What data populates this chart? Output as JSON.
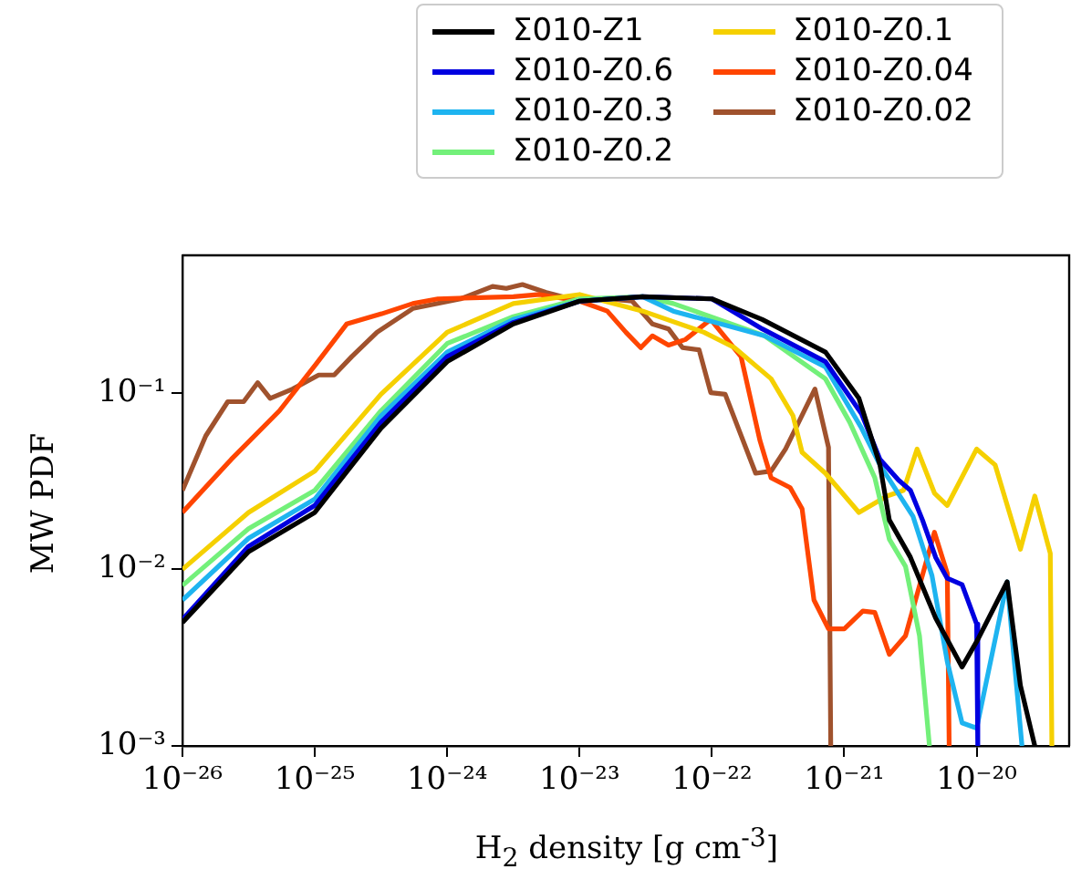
{
  "chart_data": {
    "type": "line",
    "xlabel": "H$_{2}$ density [g cm$^{-3}$]",
    "ylabel": "MW PDF",
    "log": "xy",
    "grid": false,
    "legend": "top",
    "marker": "none",
    "line_style": "solid",
    "xlim": [
      1e-26,
      5e-20
    ],
    "ylim": [
      0.001,
      0.6
    ],
    "xticks": [
      {
        "value": 1e-26,
        "label": "10⁻²⁶"
      },
      {
        "value": 1e-25,
        "label": "10⁻²⁵"
      },
      {
        "value": 1e-24,
        "label": "10⁻²⁴"
      },
      {
        "value": 1e-23,
        "label": "10⁻²³"
      },
      {
        "value": 1e-22,
        "label": "10⁻²²"
      },
      {
        "value": 1e-21,
        "label": "10⁻²¹"
      },
      {
        "value": 1e-20,
        "label": "10⁻²⁰"
      }
    ],
    "yticks": [
      {
        "value": 0.001,
        "label": "10⁻³"
      },
      {
        "value": 0.01,
        "label": "10⁻²"
      },
      {
        "value": 0.1,
        "label": "10⁻¹"
      }
    ],
    "series": [
      {
        "name": "Σ010-Z1",
        "color": "#000000",
        "x": [
          1e-26,
          3.16e-26,
          1e-25,
          3.16e-25,
          1e-24,
          3.16e-24,
          1e-23,
          3e-23,
          1e-22,
          2.4e-22,
          7.2e-22,
          1.29e-21,
          1.86e-21,
          2.19e-21,
          3.16e-21,
          4.9e-21,
          7.76e-21,
          1.02e-20,
          1.7e-20,
          2.14e-20,
          2.75e-20
        ],
        "values": [
          0.005,
          0.0126,
          0.021,
          0.063,
          0.15,
          0.245,
          0.33,
          0.35,
          0.34,
          0.26,
          0.17,
          0.093,
          0.039,
          0.019,
          0.0117,
          0.0053,
          0.0028,
          0.004,
          0.0085,
          0.0022,
          0.001
        ]
      },
      {
        "name": "Σ010-Z0.6",
        "color": "#0000e0",
        "x": [
          1e-26,
          3.16e-26,
          1e-25,
          3.16e-25,
          1e-24,
          3.16e-24,
          1e-23,
          3e-23,
          1e-22,
          2.4e-22,
          7.2e-22,
          1.35e-21,
          1.86e-21,
          2.57e-21,
          3.16e-21,
          3.9e-21,
          4.9e-21,
          6e-21,
          7.76e-21,
          1e-20,
          1.02e-20
        ],
        "values": [
          0.0052,
          0.0135,
          0.023,
          0.068,
          0.16,
          0.25,
          0.33,
          0.35,
          0.34,
          0.23,
          0.15,
          0.076,
          0.042,
          0.032,
          0.028,
          0.019,
          0.0117,
          0.0089,
          0.0082,
          0.0049,
          0.001
        ]
      },
      {
        "name": "Σ010-Z0.3",
        "color": "#1eb4f0",
        "x": [
          1e-26,
          3.16e-26,
          1e-25,
          3.16e-25,
          1e-24,
          3.16e-24,
          1e-23,
          3e-23,
          5.1e-23,
          2.5e-22,
          7.2e-22,
          1.35e-21,
          1.86e-21,
          3.3e-21,
          4.6e-21,
          6e-21,
          7.76e-21,
          1e-20,
          1.7e-20,
          2.2e-20
        ],
        "values": [
          0.0067,
          0.015,
          0.025,
          0.074,
          0.17,
          0.26,
          0.33,
          0.35,
          0.29,
          0.21,
          0.14,
          0.063,
          0.039,
          0.02,
          0.0092,
          0.003,
          0.00135,
          0.00126,
          0.0085,
          0.001
        ]
      },
      {
        "name": "Σ010-Z0.2",
        "color": "#73f07a",
        "x": [
          1e-26,
          3.16e-26,
          1e-25,
          3.16e-25,
          1e-24,
          3.16e-24,
          1e-23,
          3e-23,
          5.1e-23,
          2.5e-22,
          7.2e-22,
          1.1e-21,
          1.7e-21,
          2.19e-21,
          2.9e-21,
          3.7e-21,
          4.4e-21
        ],
        "values": [
          0.0081,
          0.017,
          0.028,
          0.079,
          0.19,
          0.27,
          0.34,
          0.35,
          0.32,
          0.21,
          0.12,
          0.068,
          0.033,
          0.0148,
          0.0104,
          0.0042,
          0.001
        ]
      },
      {
        "name": "Σ010-Z0.1",
        "color": "#f5d000",
        "x": [
          1e-26,
          3.16e-26,
          1e-25,
          3.16e-25,
          1e-24,
          3.16e-24,
          1e-23,
          3e-23,
          8.7e-23,
          1.48e-22,
          2.8e-22,
          4.1e-22,
          4.8e-22,
          7.2e-22,
          1.29e-21,
          2.1e-21,
          2.8e-21,
          3.55e-21,
          4.8e-21,
          6e-21,
          1e-20,
          1.38e-20,
          2.14e-20,
          2.75e-20,
          3.6e-20,
          3.7e-20
        ],
        "values": [
          0.01,
          0.021,
          0.036,
          0.098,
          0.22,
          0.32,
          0.36,
          0.29,
          0.22,
          0.18,
          0.12,
          0.074,
          0.046,
          0.035,
          0.021,
          0.026,
          0.028,
          0.048,
          0.027,
          0.023,
          0.048,
          0.039,
          0.013,
          0.026,
          0.0123,
          0.001
        ]
      },
      {
        "name": "Σ010-Z0.04",
        "color": "#ff4500",
        "x": [
          1e-26,
          2.34e-26,
          5.4e-26,
          1.02e-25,
          1.74e-25,
          3.2e-25,
          5.5e-25,
          8.5e-25,
          3.16e-24,
          5e-24,
          1e-23,
          1.62e-23,
          2.24e-23,
          2.9e-23,
          3.55e-23,
          4.7e-23,
          6.3e-23,
          9.8e-23,
          1.66e-22,
          2.3e-22,
          2.8e-22,
          3.9e-22,
          4.8e-22,
          5.9e-22,
          7.6e-22,
          1e-21,
          1.38e-21,
          1.7e-21,
          2.19e-21,
          2.9e-21,
          4.8e-21,
          6e-21,
          6.2e-21
        ],
        "values": [
          0.021,
          0.042,
          0.079,
          0.145,
          0.245,
          0.28,
          0.32,
          0.34,
          0.35,
          0.36,
          0.33,
          0.29,
          0.22,
          0.18,
          0.21,
          0.186,
          0.2,
          0.26,
          0.16,
          0.054,
          0.033,
          0.029,
          0.022,
          0.0067,
          0.0046,
          0.0046,
          0.0058,
          0.0057,
          0.0033,
          0.0042,
          0.0162,
          0.0095,
          0.001
        ]
      },
      {
        "name": "Σ010-Z0.02",
        "color": "#a0522d",
        "x": [
          1e-26,
          1.5e-26,
          2.2e-26,
          2.9e-26,
          3.7e-26,
          4.6e-26,
          6.8e-26,
          1.07e-25,
          1.4e-25,
          1.9e-25,
          2.95e-25,
          5.5e-25,
          1.26e-24,
          2.2e-24,
          2.8e-24,
          3.7e-24,
          5.6e-24,
          1e-23,
          1.62e-23,
          2.5e-23,
          3.55e-23,
          4.7e-23,
          6e-23,
          8e-23,
          9.8e-23,
          1.26e-22,
          2.14e-22,
          2.8e-22,
          3.6e-22,
          6e-22,
          7.6e-22,
          7.9e-22
        ],
        "values": [
          0.028,
          0.057,
          0.089,
          0.089,
          0.114,
          0.093,
          0.105,
          0.126,
          0.126,
          0.16,
          0.22,
          0.3,
          0.34,
          0.4,
          0.39,
          0.41,
          0.37,
          0.33,
          0.34,
          0.33,
          0.245,
          0.23,
          0.18,
          0.175,
          0.1,
          0.098,
          0.035,
          0.036,
          0.048,
          0.105,
          0.049,
          0.001
        ]
      }
    ]
  }
}
